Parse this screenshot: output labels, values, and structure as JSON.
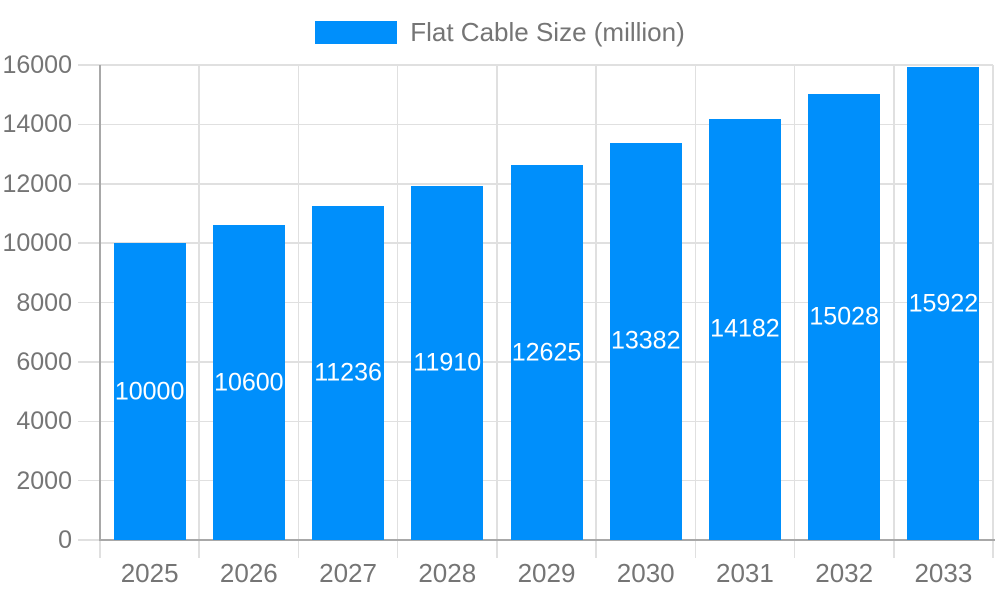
{
  "chart_data": {
    "type": "bar",
    "title": "",
    "series_name": "Flat Cable Size (million)",
    "categories": [
      "2025",
      "2026",
      "2027",
      "2028",
      "2029",
      "2030",
      "2031",
      "2032",
      "2033"
    ],
    "values": [
      10000,
      10600,
      11236,
      11910,
      12625,
      13382,
      14182,
      15028,
      15922
    ],
    "xlabel": "",
    "ylabel": "",
    "ylim": [
      0,
      16000
    ],
    "yticks": [
      0,
      2000,
      4000,
      6000,
      8000,
      10000,
      12000,
      14000,
      16000
    ],
    "grid": true,
    "legend_position": "top-center",
    "data_labels_position": "inside-middle",
    "colors": {
      "bar": "#008FFB",
      "bar_label_text": "#ffffff",
      "axis_text": "#757575",
      "gridline": "#e0e0e0",
      "axis_line": "#a8a8a8",
      "background": "#ffffff"
    }
  }
}
